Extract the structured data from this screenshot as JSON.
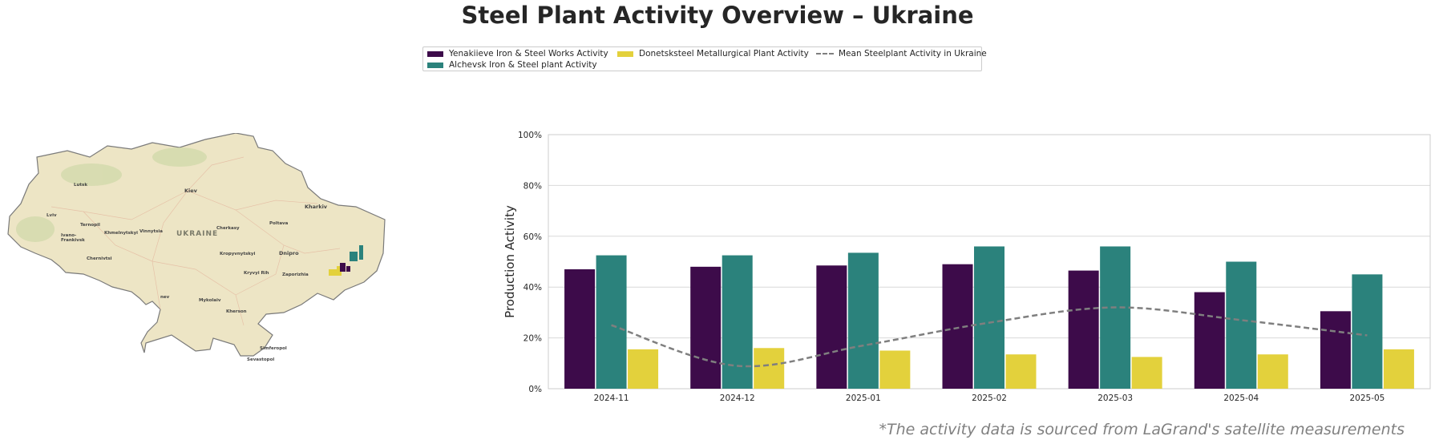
{
  "title": "Steel Plant Activity Overview – Ukraine",
  "footnote": "*The activity data is sourced from LaGrand's satellite measurements",
  "map": {
    "country_label": "UKRAINE",
    "cities": [
      "Lutsk",
      "Kiev",
      "Kharkiv",
      "Lviv",
      "Ternopil",
      "Poltava",
      "Cherkasy",
      "Ivano-",
      "Frankivsk",
      "Khmelnytskyi",
      "Vinnytsia",
      "Dnipro",
      "Kropyvnytskyi",
      "Chernivtsi",
      "Kryvyi Rih",
      "Zaporizhia",
      "nev",
      "Mykolaiv",
      "Kherson",
      "Simferopol",
      "Sevastopol"
    ]
  },
  "chart_data": {
    "type": "bar",
    "categories": [
      "2024-11",
      "2024-12",
      "2025-01",
      "2025-02",
      "2025-03",
      "2025-04",
      "2025-05"
    ],
    "series": [
      {
        "name": "Yenakiieve Iron & Steel Works Activity",
        "color": "#3d0b4a",
        "values": [
          47,
          48,
          48.5,
          49,
          46.5,
          38,
          30.5
        ]
      },
      {
        "name": "Alchevsk Iron & Steel plant Activity",
        "color": "#2b827c",
        "values": [
          52.5,
          52.5,
          53.5,
          56,
          56,
          50,
          45
        ]
      },
      {
        "name": "Donetsksteel Metallurgical Plant Activity",
        "color": "#e3d13c",
        "values": [
          15.5,
          16,
          15,
          13.5,
          12.5,
          13.5,
          15.5
        ]
      }
    ],
    "mean_line": {
      "name": "Mean Steelplant Activity in Ukraine",
      "color": "#7f7f7f",
      "values": [
        25,
        9,
        17,
        26,
        32,
        27,
        21
      ]
    },
    "ylabel": "Production Activity",
    "ylim": [
      0,
      100
    ],
    "yticks": [
      "0%",
      "20%",
      "40%",
      "60%",
      "80%",
      "100%"
    ],
    "grid": true,
    "legend_position": "top-center"
  }
}
